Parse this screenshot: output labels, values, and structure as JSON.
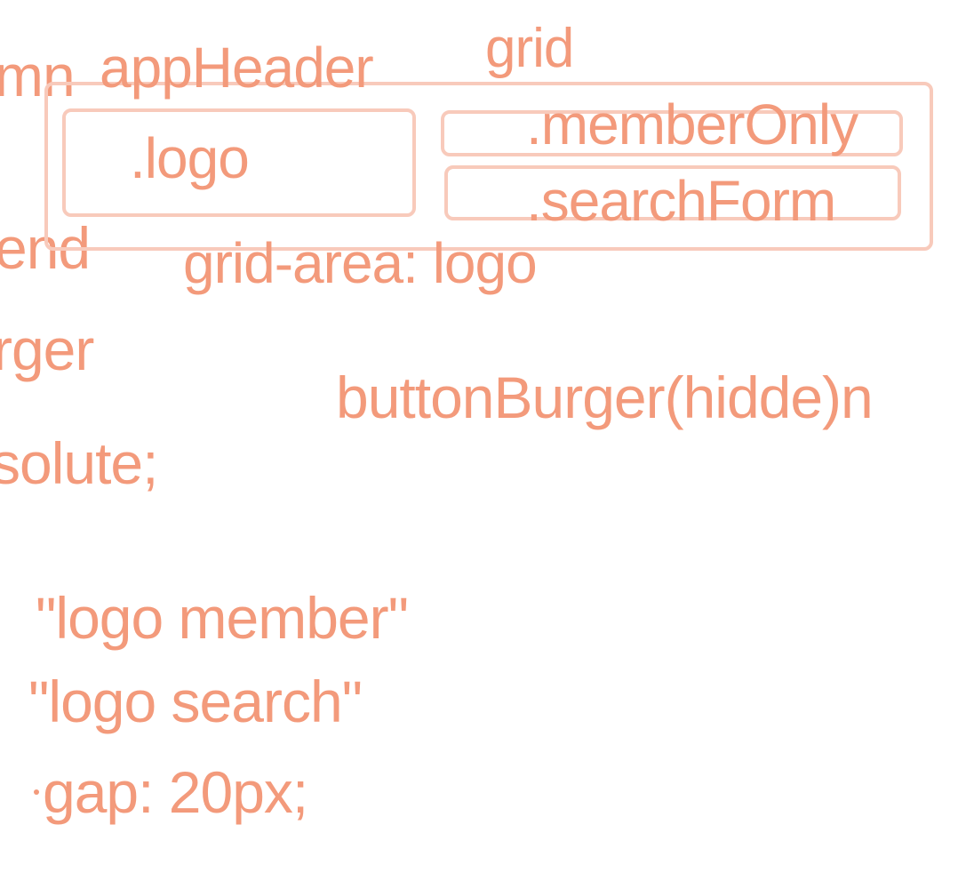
{
  "accent_color": "#f39a7b",
  "box_border_color": "#f8cabb",
  "left_fragments": {
    "column": "mn",
    "end": "end",
    "burger": "rger",
    "absolute": "solute;"
  },
  "header": {
    "label": "appHeader",
    "display": "grid",
    "logo_box": ".logo",
    "member_box": ".memberOnly",
    "search_box": ".searchForm",
    "logo_area": "grid-area: logo"
  },
  "burger_label": "buttonBurger(hidde)n",
  "template_areas": {
    "row1": "\"logo member\"",
    "row2": "\"logo search\"",
    "gap": "gap: 20px;"
  }
}
